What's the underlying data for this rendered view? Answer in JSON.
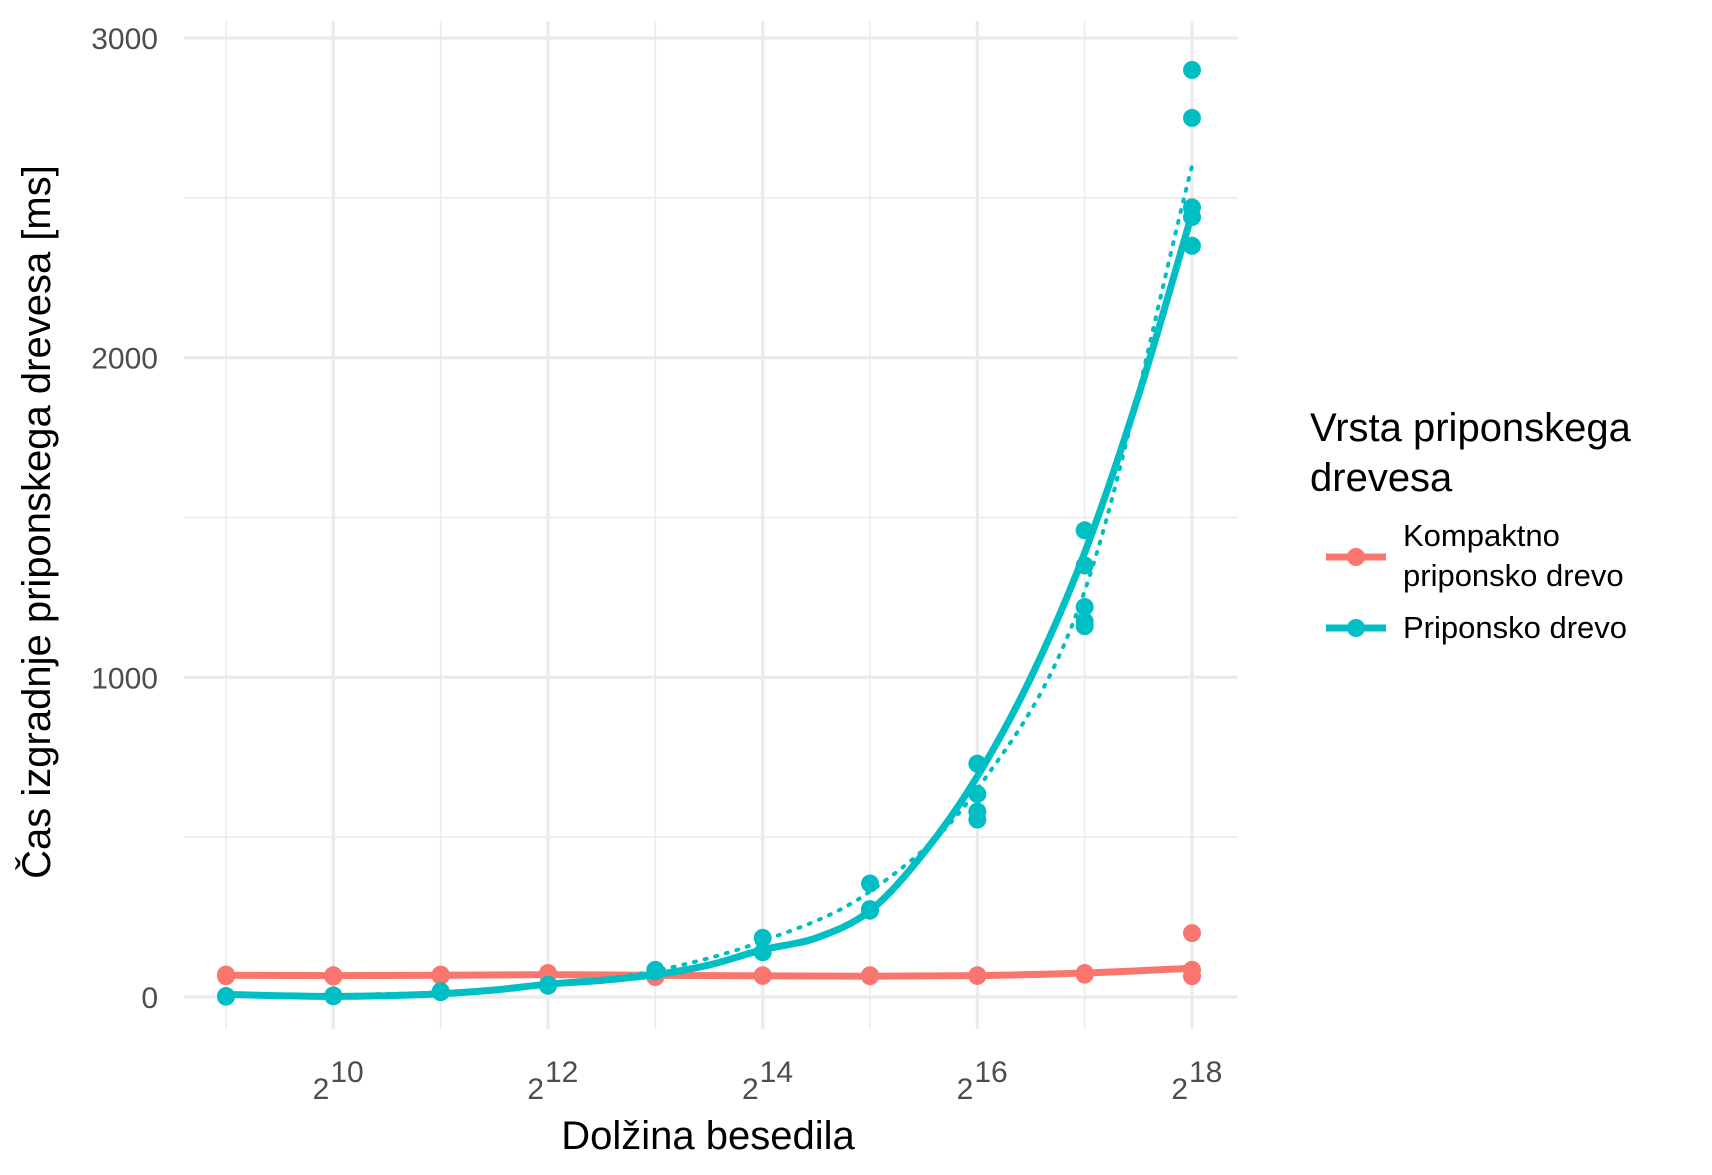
{
  "chart_data": {
    "type": "scatter",
    "xlabel": "Dolžina besedila",
    "ylabel": "Čas izgradnje priponskega drevesa [ms]",
    "x_scale": "log2",
    "x_lim": [
      512,
      262144
    ],
    "y_lim": [
      0,
      3000
    ],
    "x_tick_base": "2",
    "x_tick_exponents": [
      "10",
      "12",
      "14",
      "16",
      "18"
    ],
    "y_ticks": [
      "0",
      "1000",
      "2000",
      "3000"
    ],
    "grid": true,
    "legend": {
      "title_lines": [
        "Vrsta priponskega",
        "drevesa"
      ],
      "position": "right"
    },
    "series": [
      {
        "name_lines": [
          "Kompaktno",
          "priponsko drevo"
        ],
        "color": "#F8766D",
        "points": [
          [
            512,
            70
          ],
          [
            512,
            65
          ],
          [
            1024,
            68
          ],
          [
            1024,
            64
          ],
          [
            2048,
            70
          ],
          [
            2048,
            66
          ],
          [
            4096,
            75
          ],
          [
            4096,
            70
          ],
          [
            8192,
            65
          ],
          [
            8192,
            62
          ],
          [
            16384,
            68
          ],
          [
            16384,
            66
          ],
          [
            32768,
            68
          ],
          [
            32768,
            65
          ],
          [
            65536,
            68
          ],
          [
            65536,
            66
          ],
          [
            131072,
            75
          ],
          [
            131072,
            70
          ],
          [
            262144,
            200
          ],
          [
            262144,
            85
          ],
          [
            262144,
            65
          ]
        ],
        "smooth": [
          [
            512,
            68
          ],
          [
            1024,
            67
          ],
          [
            2048,
            68
          ],
          [
            4096,
            70
          ],
          [
            8192,
            68
          ],
          [
            16384,
            66
          ],
          [
            32768,
            65
          ],
          [
            65536,
            67
          ],
          [
            131072,
            75
          ],
          [
            262144,
            90
          ]
        ]
      },
      {
        "name_lines": [
          "Priponsko drevo"
        ],
        "color": "#00BFC4",
        "points": [
          [
            512,
            3
          ],
          [
            512,
            1
          ],
          [
            1024,
            5
          ],
          [
            1024,
            2
          ],
          [
            2048,
            18
          ],
          [
            2048,
            15
          ],
          [
            4096,
            38
          ],
          [
            4096,
            35
          ],
          [
            8192,
            85
          ],
          [
            8192,
            80
          ],
          [
            16384,
            185
          ],
          [
            16384,
            140
          ],
          [
            32768,
            355
          ],
          [
            32768,
            275
          ],
          [
            32768,
            270
          ],
          [
            65536,
            730
          ],
          [
            65536,
            635
          ],
          [
            65536,
            580
          ],
          [
            65536,
            555
          ],
          [
            131072,
            1460
          ],
          [
            131072,
            1350
          ],
          [
            131072,
            1220
          ],
          [
            131072,
            1175
          ],
          [
            131072,
            1160
          ],
          [
            262144,
            2900
          ],
          [
            262144,
            2750
          ],
          [
            262144,
            2470
          ],
          [
            262144,
            2440
          ],
          [
            262144,
            2350
          ]
        ],
        "smooth": [
          [
            512,
            8
          ],
          [
            724,
            4
          ],
          [
            1024,
            2
          ],
          [
            1448,
            4
          ],
          [
            2048,
            10
          ],
          [
            2896,
            22
          ],
          [
            4096,
            40
          ],
          [
            5793,
            52
          ],
          [
            8192,
            70
          ],
          [
            11585,
            100
          ],
          [
            16384,
            148
          ],
          [
            23170,
            185
          ],
          [
            32768,
            270
          ],
          [
            46341,
            450
          ],
          [
            65536,
            690
          ],
          [
            92682,
            1000
          ],
          [
            131072,
            1390
          ],
          [
            185364,
            1880
          ],
          [
            262144,
            2450
          ]
        ],
        "trend": [
          [
            1024,
            5
          ],
          [
            2048,
            15
          ],
          [
            4096,
            36
          ],
          [
            8192,
            82
          ],
          [
            16384,
            175
          ],
          [
            32768,
            330
          ],
          [
            65536,
            650
          ],
          [
            131072,
            1270
          ],
          [
            262144,
            2600
          ]
        ]
      }
    ]
  }
}
